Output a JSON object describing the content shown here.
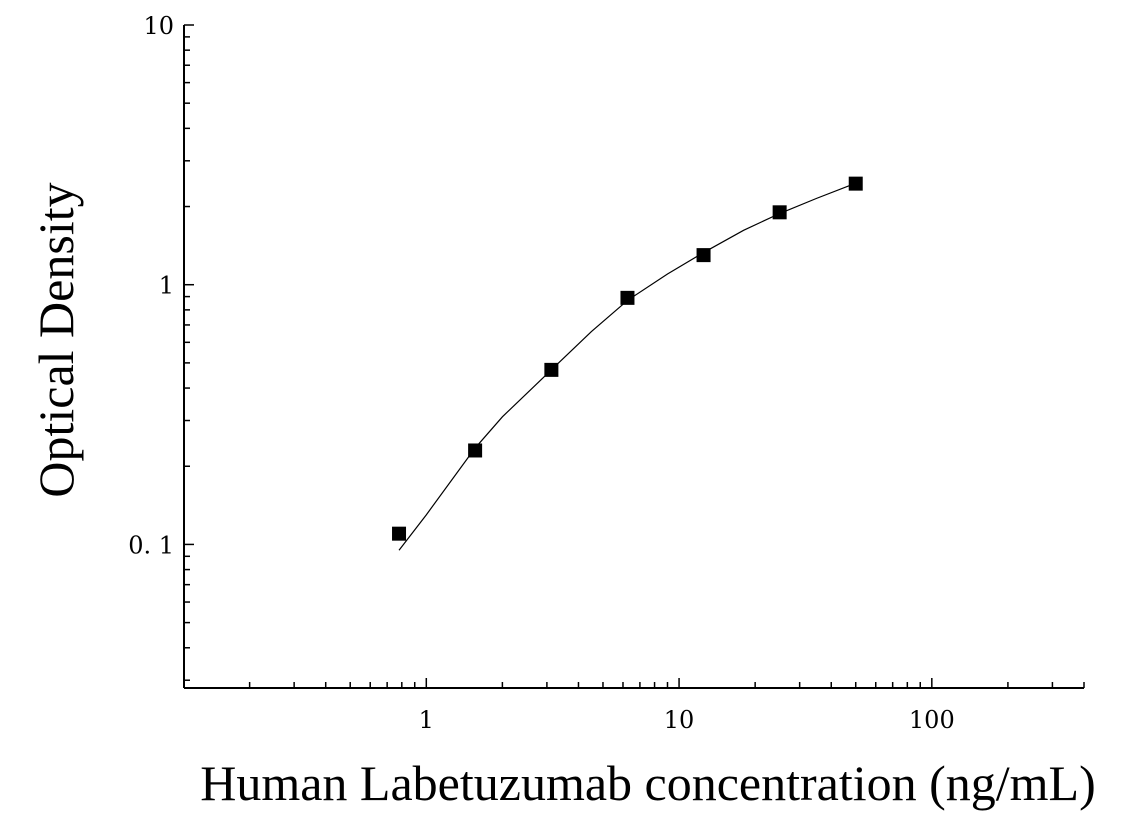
{
  "chart_data": {
    "type": "scatter",
    "title": "",
    "xlabel": "Human Labetuzumab concentration (ng/mL)",
    "ylabel": "Optical Density",
    "xscale": "log",
    "yscale": "log",
    "xlim": [
      0.11,
      400
    ],
    "ylim": [
      0.028,
      10
    ],
    "grid": false,
    "x_ticks": [
      {
        "value": 1,
        "label": "1"
      },
      {
        "value": 10,
        "label": "10"
      },
      {
        "value": 100,
        "label": "100"
      }
    ],
    "y_ticks": [
      {
        "value": 0.1,
        "label": "0. 1"
      },
      {
        "value": 1,
        "label": "1"
      },
      {
        "value": 10,
        "label": "10"
      }
    ],
    "series": [
      {
        "marker": "square",
        "color": "#000000",
        "x": [
          0.78,
          1.56,
          3.125,
          6.25,
          12.5,
          25,
          50
        ],
        "y": [
          0.11,
          0.23,
          0.47,
          0.89,
          1.3,
          1.9,
          2.45
        ]
      }
    ],
    "fit_curve": {
      "color": "#000000",
      "x": [
        0.78,
        1.0,
        1.56,
        2.0,
        3.125,
        4.5,
        6.25,
        9.0,
        12.5,
        18,
        25,
        35,
        50
      ],
      "y": [
        0.095,
        0.13,
        0.235,
        0.31,
        0.47,
        0.66,
        0.87,
        1.1,
        1.33,
        1.62,
        1.88,
        2.15,
        2.46
      ]
    }
  }
}
